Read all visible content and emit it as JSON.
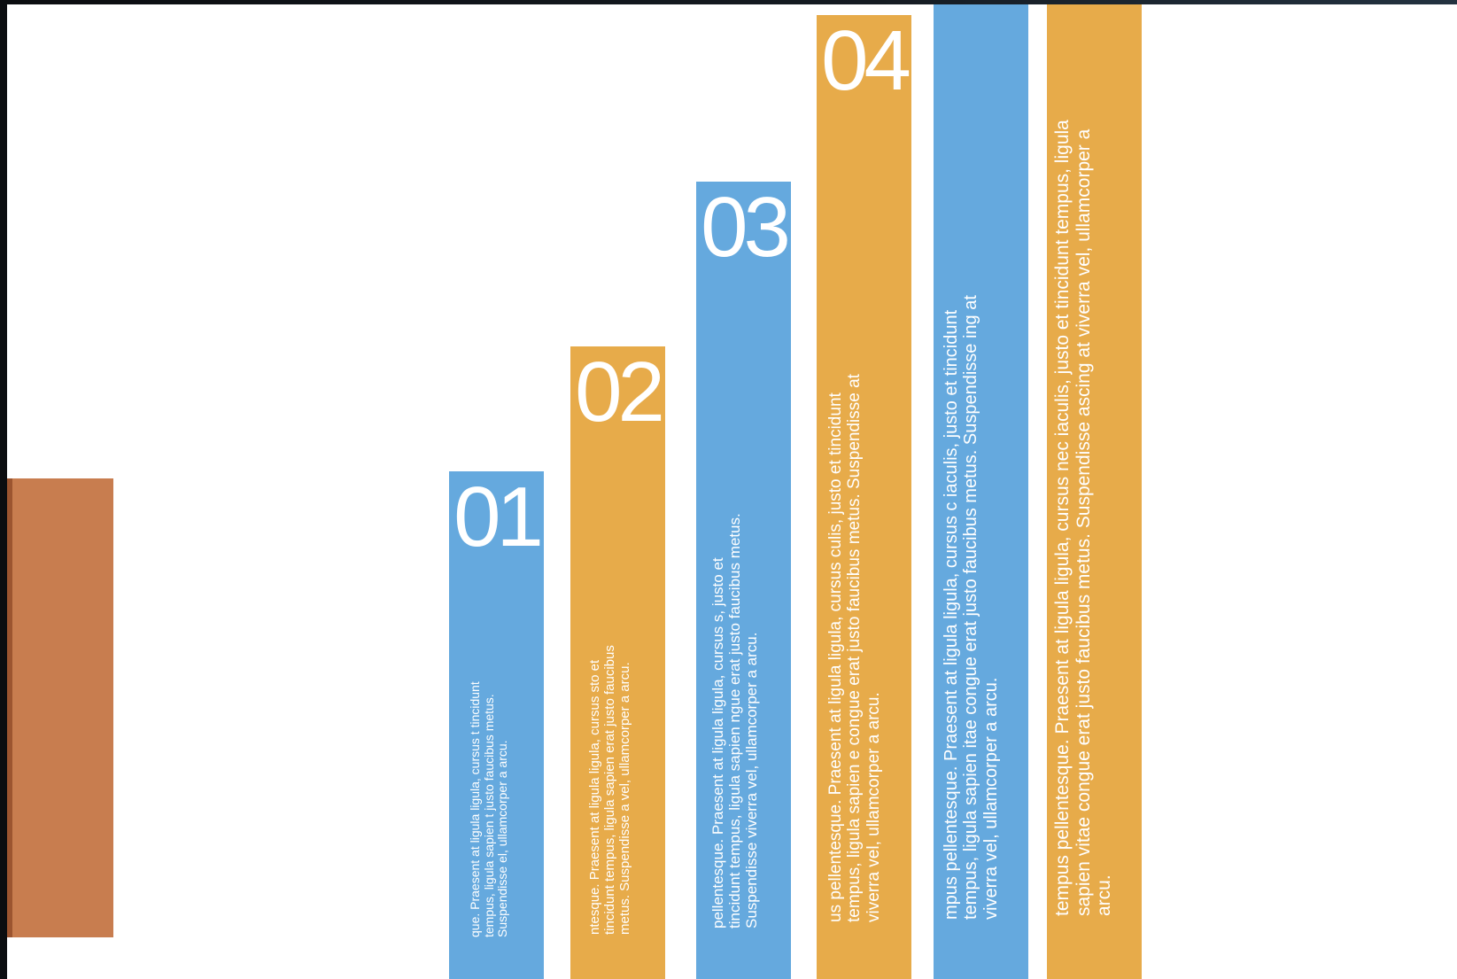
{
  "colors": {
    "blue": "#65a9de",
    "orange": "#e7ab4a",
    "accent": "#c87d4f"
  },
  "bars": [
    {
      "number": "01",
      "color": "blue",
      "text": "que. Praesent at ligula ligula, cursus t tincidunt tempus, ligula sapien t justo faucibus metus. Suspendisse el, ullamcorper a arcu."
    },
    {
      "number": "02",
      "color": "orange",
      "text": "ntesque. Praesent at ligula ligula, cursus sto et tincidunt tempus, ligula sapien erat justo faucibus metus. Suspendisse a vel, ullamcorper a arcu."
    },
    {
      "number": "03",
      "color": "blue",
      "text": "pellentesque. Praesent at ligula ligula, cursus s, justo et tincidunt tempus, ligula sapien ngue erat justo faucibus metus. Suspendisse viverra vel, ullamcorper a arcu."
    },
    {
      "number": "04",
      "color": "orange",
      "text": "us pellentesque. Praesent at ligula ligula, cursus culis, justo et tincidunt tempus, ligula sapien e congue erat justo faucibus metus. Suspendisse at viverra vel, ullamcorper a arcu."
    },
    {
      "number": "",
      "color": "blue",
      "text": "mpus pellentesque. Praesent at ligula ligula, cursus c iaculis, justo et tincidunt tempus, ligula sapien itae congue erat justo faucibus metus. Suspendisse ing at viverra vel, ullamcorper a arcu."
    },
    {
      "number": "",
      "color": "orange",
      "text": "tempus pellentesque. Praesent at ligula ligula, cursus nec iaculis, justo et tincidunt tempus, ligula sapien vitae congue erat justo faucibus metus. Suspendisse ascing at viverra vel, ullamcorper a arcu."
    }
  ]
}
